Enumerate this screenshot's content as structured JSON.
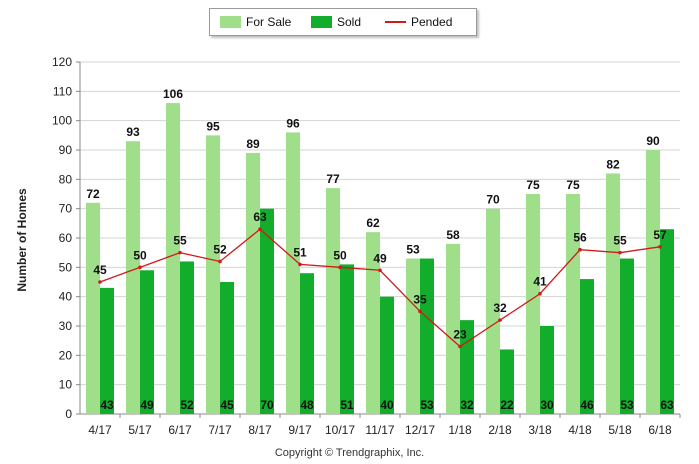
{
  "chart_data": {
    "type": "bar",
    "categories": [
      "4/17",
      "5/17",
      "6/17",
      "7/17",
      "8/17",
      "9/17",
      "10/17",
      "11/17",
      "12/17",
      "1/18",
      "2/18",
      "3/18",
      "4/18",
      "5/18",
      "6/18"
    ],
    "series": [
      {
        "name": "For Sale",
        "type": "bar",
        "color": "#9fdf8a",
        "values": [
          72,
          93,
          106,
          95,
          89,
          96,
          77,
          62,
          53,
          58,
          70,
          75,
          75,
          82,
          90
        ]
      },
      {
        "name": "Sold",
        "type": "bar",
        "color": "#13ad2c",
        "values": [
          43,
          49,
          52,
          45,
          70,
          48,
          51,
          40,
          53,
          32,
          22,
          30,
          46,
          53,
          63
        ]
      },
      {
        "name": "Pended",
        "type": "line",
        "color": "#d11a1a",
        "values": [
          45,
          50,
          55,
          52,
          63,
          51,
          50,
          49,
          35,
          23,
          32,
          41,
          56,
          55,
          57
        ]
      }
    ],
    "title": "",
    "xlabel": "",
    "ylabel": "Number of Homes",
    "ylim": [
      0,
      120
    ],
    "yticks": [
      0,
      10,
      20,
      30,
      40,
      50,
      60,
      70,
      80,
      90,
      100,
      110,
      120
    ],
    "grid": true,
    "legend_position": "top-center"
  },
  "legend": {
    "for_sale": "For Sale",
    "sold": "Sold",
    "pended": "Pended"
  },
  "footer": "Copyright © Trendgraphix, Inc."
}
